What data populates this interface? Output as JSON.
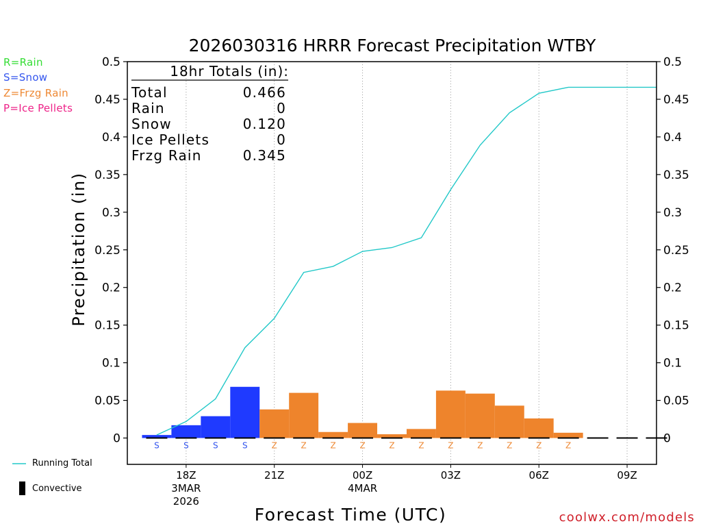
{
  "legend_codes": [
    {
      "text": "R=Rain",
      "color": "#33dd33"
    },
    {
      "text": "S=Snow",
      "color": "#3355ee"
    },
    {
      "text": "Z=Frzg Rain",
      "color": "#ee8833"
    },
    {
      "text": "P=Ice Pellets",
      "color": "#ee2288"
    }
  ],
  "totals": {
    "header": "18hr Totals (in):",
    "rows": [
      {
        "label": "Total",
        "value": "0.466"
      },
      {
        "label": "Rain",
        "value": "0"
      },
      {
        "label": "Snow",
        "value": "0.120"
      },
      {
        "label": "Ice Pellets",
        "value": "0"
      },
      {
        "label": "Frzg Rain",
        "value": "0.345"
      }
    ]
  },
  "key": {
    "running_total": "Running Total",
    "convective": "Convective"
  },
  "credit": "coolwx.com/models",
  "colors": {
    "snow": "#1f3aff",
    "frzg_rain": "#ee842c",
    "running_total": "#22c8c8",
    "credit": "#d0202a"
  },
  "chart_data": {
    "type": "bar",
    "title": "2026030316 HRRR Forecast Precipitation WTBY",
    "xlabel": "Forecast Time (UTC)",
    "ylabel": "Precipitation (in)",
    "x_range": [
      16,
      34
    ],
    "ylim": [
      -0.035,
      0.5
    ],
    "y_ticks": [
      0,
      0.05,
      0.1,
      0.15,
      0.2,
      0.25,
      0.3,
      0.35,
      0.4,
      0.45,
      0.5
    ],
    "y_tick_labels": [
      "0",
      "0.05",
      "0.1",
      "0.15",
      "0.2",
      "0.25",
      "0.3",
      "0.35",
      "0.4",
      "0.45",
      "0.5"
    ],
    "x_ticks": [
      {
        "x": 18,
        "lines": [
          "18Z",
          "3MAR",
          "2026"
        ]
      },
      {
        "x": 21,
        "lines": [
          "21Z"
        ]
      },
      {
        "x": 24,
        "lines": [
          "00Z",
          "4MAR"
        ]
      },
      {
        "x": 27,
        "lines": [
          "03Z"
        ]
      },
      {
        "x": 30,
        "lines": [
          "06Z"
        ]
      },
      {
        "x": 33,
        "lines": [
          "09Z"
        ]
      }
    ],
    "bars": [
      {
        "x": 17,
        "value": 0.004,
        "type": "S"
      },
      {
        "x": 18,
        "value": 0.017,
        "type": "S"
      },
      {
        "x": 19,
        "value": 0.029,
        "type": "S"
      },
      {
        "x": 20,
        "value": 0.068,
        "type": "S"
      },
      {
        "x": 21,
        "value": 0.038,
        "type": "Z"
      },
      {
        "x": 22,
        "value": 0.06,
        "type": "Z"
      },
      {
        "x": 23,
        "value": 0.008,
        "type": "Z"
      },
      {
        "x": 24,
        "value": 0.02,
        "type": "Z"
      },
      {
        "x": 25,
        "value": 0.005,
        "type": "Z"
      },
      {
        "x": 26,
        "value": 0.012,
        "type": "Z"
      },
      {
        "x": 27,
        "value": 0.063,
        "type": "Z"
      },
      {
        "x": 28,
        "value": 0.059,
        "type": "Z"
      },
      {
        "x": 29,
        "value": 0.043,
        "type": "Z"
      },
      {
        "x": 30,
        "value": 0.026,
        "type": "Z"
      },
      {
        "x": 31,
        "value": 0.007,
        "type": "Z"
      },
      {
        "x": 32,
        "value": 0,
        "type": ""
      },
      {
        "x": 33,
        "value": 0,
        "type": ""
      },
      {
        "x": 34,
        "value": 0,
        "type": ""
      }
    ],
    "running_total": {
      "name": "Running Total",
      "x": [
        17,
        18,
        19,
        20,
        21,
        22,
        23,
        24,
        25,
        26,
        27,
        28,
        29,
        30,
        31,
        32,
        33,
        34
      ],
      "y": [
        0.004,
        0.022,
        0.052,
        0.12,
        0.159,
        0.22,
        0.228,
        0.248,
        0.253,
        0.266,
        0.33,
        0.389,
        0.432,
        0.458,
        0.466,
        0.466,
        0.466,
        0.466
      ]
    },
    "convective": []
  }
}
